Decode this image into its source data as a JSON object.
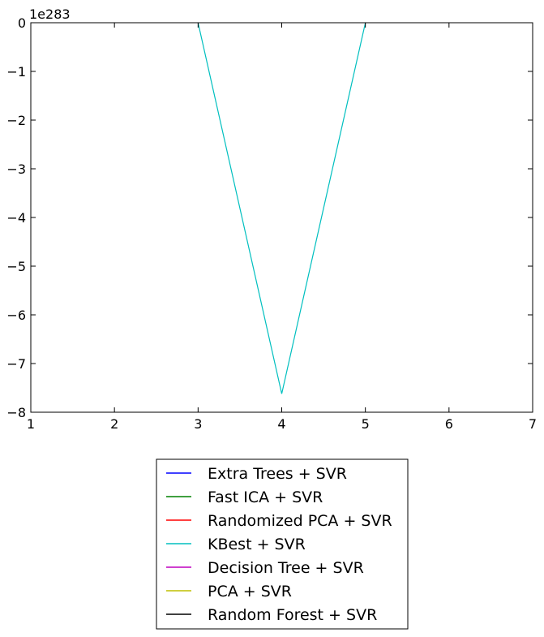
{
  "chart_data": {
    "type": "line",
    "title": "",
    "xlabel": "",
    "ylabel": "",
    "offset_label": "1e283",
    "xlim": [
      1,
      7
    ],
    "ylim": [
      -8,
      0
    ],
    "x_ticks": [
      1,
      2,
      3,
      4,
      5,
      6,
      7
    ],
    "y_ticks": [
      0,
      -1,
      -2,
      -3,
      -4,
      -5,
      -6,
      -7,
      -8
    ],
    "x_tick_labels": [
      "1",
      "2",
      "3",
      "4",
      "5",
      "6",
      "7"
    ],
    "y_tick_labels": [
      "0",
      "−1",
      "−2",
      "−3",
      "−4",
      "−5",
      "−6",
      "−7",
      "−8"
    ],
    "grid": false,
    "legend_position": "below",
    "series": [
      {
        "name": "Extra Trees + SVR",
        "color": "#0000ff",
        "x": [],
        "y": []
      },
      {
        "name": "Fast ICA + SVR",
        "color": "#008000",
        "x": [],
        "y": []
      },
      {
        "name": "Randomized PCA + SVR",
        "color": "#ff0000",
        "x": [],
        "y": []
      },
      {
        "name": "KBest + SVR",
        "color": "#00bfbf",
        "x": [
          3,
          4,
          5
        ],
        "y": [
          0,
          -7.62,
          0
        ]
      },
      {
        "name": "Decision Tree + SVR",
        "color": "#bf00bf",
        "x": [],
        "y": []
      },
      {
        "name": "PCA + SVR",
        "color": "#bfbf00",
        "x": [],
        "y": []
      },
      {
        "name": "Random Forest + SVR",
        "color": "#000000",
        "x": [],
        "y": []
      }
    ]
  }
}
